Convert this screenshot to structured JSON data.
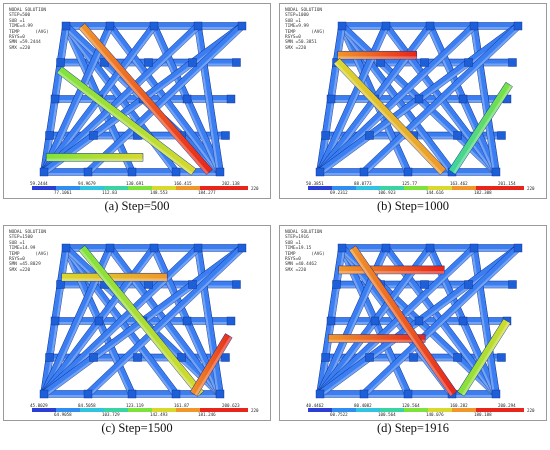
{
  "colors": {
    "c0": "#2b3fd6",
    "c1": "#2f8ef0",
    "c2": "#30c4e0",
    "c3": "#39d3a4",
    "c4": "#7ee23c",
    "c5": "#d8d92c",
    "c6": "#f0962a",
    "c7": "#e8251a",
    "base": "#3a7ef2",
    "edge": "#0a2a8a"
  },
  "panels": [
    {
      "caption": "(a) Step=500",
      "header": [
        "NODAL SOLUTION",
        "STEP=500",
        "SUB =1",
        "TIME=4.99",
        "TEMP      (AVG)",
        "RSYS=0",
        "SMN =59.2444",
        "SMX =220"
      ],
      "legend_top": [
        "59.2444",
        "94.9679",
        "130.691",
        "166.415",
        "202.138"
      ],
      "legend_bottom": [
        "77.1061",
        "112.83",
        "148.553",
        "184.277"
      ],
      "legend_end": "220",
      "hot_bars": [
        {
          "a": 0.3,
          "b": 0.85,
          "dir": "d",
          "colors": [
            "c6",
            "c7"
          ]
        },
        {
          "a": 0.5,
          "b": 0.85,
          "dir": "d2",
          "colors": [
            "c4",
            "c5"
          ]
        },
        {
          "a": 0.9,
          "b": 0.55,
          "dir": "h",
          "colors": [
            "c4",
            "c5"
          ]
        }
      ]
    },
    {
      "caption": "(b) Step=1000",
      "header": [
        "NODAL SOLUTION",
        "STEP=1000",
        "SUB =1",
        "TIME=9.99",
        "TEMP      (AVG)",
        "RSYS=0",
        "SMN =50.3851",
        "SMX =220"
      ],
      "legend_top": [
        "50.3851",
        "88.0773",
        "125.77",
        "163.462",
        "201.154"
      ],
      "legend_bottom": [
        "69.2312",
        "106.923",
        "144.616",
        "182.308"
      ],
      "legend_end": "220",
      "hot_bars": [
        {
          "a": 0.2,
          "b": 0.45,
          "dir": "h",
          "colors": [
            "c6",
            "c7"
          ]
        },
        {
          "a": 0.4,
          "b": 0.7,
          "dir": "d2",
          "colors": [
            "c5",
            "c6"
          ]
        },
        {
          "a": 0.75,
          "b": 0.6,
          "dir": "u",
          "colors": [
            "c3",
            "c4"
          ]
        }
      ]
    },
    {
      "caption": "(c) Step=1500",
      "header": [
        "NODAL SOLUTION",
        "STEP=1500",
        "SUB =1",
        "TIME=14.99",
        "TEMP      (AVG)",
        "RSYS=0",
        "SMN =45.8029",
        "SMX =220"
      ],
      "legend_top": [
        "45.8029",
        "84.5058",
        "123.119",
        "161.87",
        "200.623"
      ],
      "legend_bottom": [
        "64.9058",
        "103.729",
        "142.493",
        "181.246"
      ],
      "legend_end": "220",
      "hot_bars": [
        {
          "a": 0.2,
          "b": 0.6,
          "dir": "h",
          "colors": [
            "c5",
            "c6"
          ]
        },
        {
          "a": 0.3,
          "b": 0.8,
          "dir": "d",
          "colors": [
            "c4",
            "c5"
          ]
        },
        {
          "a": 0.85,
          "b": 0.4,
          "dir": "u",
          "colors": [
            "c6",
            "c7"
          ]
        }
      ]
    },
    {
      "caption": "(d) Step=1916",
      "header": [
        "NODAL SOLUTION",
        "STEP=1916",
        "SUB =1",
        "TIME=19.15",
        "TEMP      (AVG)",
        "RSYS=0",
        "SMN =40.4462",
        "SMX =220"
      ],
      "legend_top": [
        "40.4462",
        "80.4082",
        "120.564",
        "160.282",
        "200.294"
      ],
      "legend_bottom": [
        "60.7522",
        "100.564",
        "140.076",
        "180.188"
      ],
      "legend_end": "220",
      "hot_bars": [
        {
          "a": 0.15,
          "b": 0.6,
          "dir": "h",
          "colors": [
            "c6",
            "c7"
          ]
        },
        {
          "a": 0.62,
          "b": 0.55,
          "dir": "h",
          "colors": [
            "c6",
            "c7"
          ]
        },
        {
          "a": 0.8,
          "b": 0.5,
          "dir": "u",
          "colors": [
            "c4",
            "c5"
          ]
        },
        {
          "a": 0.2,
          "b": 0.7,
          "dir": "d",
          "colors": [
            "c6",
            "c7"
          ]
        }
      ]
    }
  ]
}
